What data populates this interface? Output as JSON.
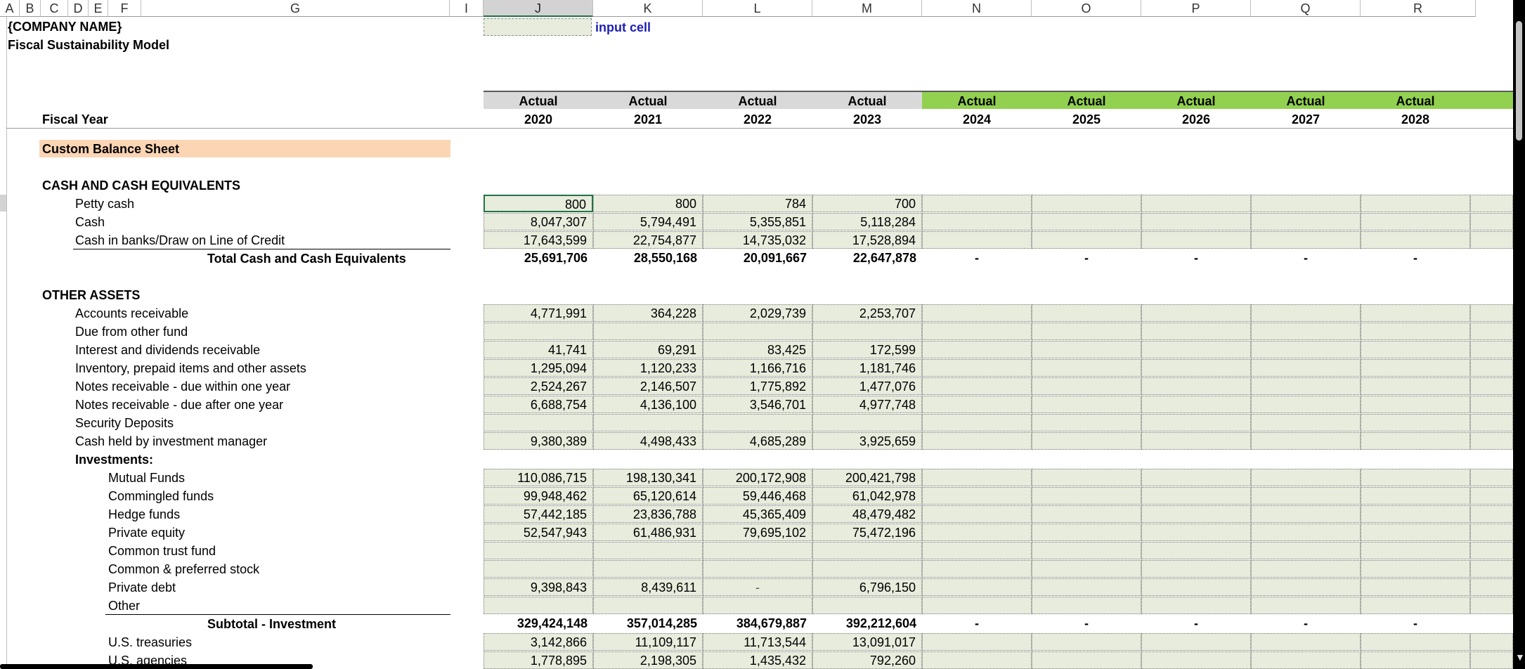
{
  "columns": {
    "letters": [
      "A",
      "B",
      "C",
      "D",
      "E",
      "F",
      "G",
      "I",
      "J",
      "K",
      "L",
      "M",
      "N",
      "O",
      "P",
      "Q",
      "R"
    ],
    "selected": "J"
  },
  "title": {
    "company": "{COMPANY NAME}",
    "model": "Fiscal Sustainability Model",
    "input_legend": "input cell"
  },
  "header": {
    "fiscal_year_label": "Fiscal Year",
    "period_types": [
      "Actual",
      "Actual",
      "Actual",
      "Actual",
      "Actual",
      "Actual",
      "Actual",
      "Actual",
      "Actual"
    ],
    "years": [
      "2020",
      "2021",
      "2022",
      "2023",
      "2024",
      "2025",
      "2026",
      "2027",
      "2028"
    ],
    "colors": {
      "gray": "#d9d9d9",
      "green": "#92d050"
    }
  },
  "section_title": "Custom Balance Sheet",
  "cash": {
    "heading": "CASH AND CASH EQUIVALENTS",
    "rows": [
      {
        "label": "Petty cash",
        "values": [
          "800",
          "800",
          "784",
          "700"
        ]
      },
      {
        "label": "Cash",
        "values": [
          "8,047,307",
          "5,794,491",
          "5,355,851",
          "5,118,284"
        ]
      },
      {
        "label": "Cash in banks/Draw on Line of Credit",
        "values": [
          "17,643,599",
          "22,754,877",
          "14,735,032",
          "17,528,894"
        ]
      }
    ],
    "total": {
      "label": "Total Cash and Cash Equivalents",
      "values": [
        "25,691,706",
        "28,550,168",
        "20,091,667",
        "22,647,878"
      ],
      "future": "-"
    }
  },
  "other_assets": {
    "heading": "OTHER ASSETS",
    "rows": [
      {
        "label": "Accounts receivable",
        "values": [
          "4,771,991",
          "364,228",
          "2,029,739",
          "2,253,707"
        ]
      },
      {
        "label": "Due from other fund",
        "values": [
          "",
          "",
          "",
          ""
        ]
      },
      {
        "label": "Interest and dividends receivable",
        "values": [
          "41,741",
          "69,291",
          "83,425",
          "172,599"
        ]
      },
      {
        "label": "Inventory, prepaid items and other assets",
        "values": [
          "1,295,094",
          "1,120,233",
          "1,166,716",
          "1,181,746"
        ]
      },
      {
        "label": "Notes receivable - due within one year",
        "values": [
          "2,524,267",
          "2,146,507",
          "1,775,892",
          "1,477,076"
        ]
      },
      {
        "label": "Notes receivable - due after one year",
        "values": [
          "6,688,754",
          "4,136,100",
          "3,546,701",
          "4,977,748"
        ]
      },
      {
        "label": "Security Deposits",
        "values": [
          "",
          "",
          "",
          ""
        ]
      },
      {
        "label": "Cash held by investment manager",
        "values": [
          "9,380,389",
          "4,498,433",
          "4,685,289",
          "3,925,659"
        ]
      }
    ]
  },
  "investments": {
    "heading": "Investments:",
    "rows": [
      {
        "label": "Mutual Funds",
        "values": [
          "110,086,715",
          "198,130,341",
          "200,172,908",
          "200,421,798"
        ]
      },
      {
        "label": "Commingled funds",
        "values": [
          "99,948,462",
          "65,120,614",
          "59,446,468",
          "61,042,978"
        ]
      },
      {
        "label": "Hedge funds",
        "values": [
          "57,442,185",
          "23,836,788",
          "45,365,409",
          "48,479,482"
        ]
      },
      {
        "label": "Private equity",
        "values": [
          "52,547,943",
          "61,486,931",
          "79,695,102",
          "75,472,196"
        ]
      },
      {
        "label": "Common trust fund",
        "values": [
          "",
          "",
          "",
          ""
        ]
      },
      {
        "label": "Common & preferred stock",
        "values": [
          "",
          "",
          "",
          ""
        ]
      },
      {
        "label": "Private debt",
        "values": [
          "9,398,843",
          "8,439,611",
          "-",
          "6,796,150"
        ]
      },
      {
        "label": "Other",
        "values": [
          "",
          "",
          "",
          ""
        ]
      }
    ],
    "subtotal": {
      "label": "Subtotal - Investment",
      "values": [
        "329,424,148",
        "357,014,285",
        "384,679,887",
        "392,212,604"
      ],
      "future": "-"
    },
    "after": [
      {
        "label": "U.S. treasuries",
        "values": [
          "3,142,866",
          "11,109,117",
          "11,713,544",
          "13,091,017"
        ]
      },
      {
        "label": "U.S. agencies",
        "values": [
          "1,778,895",
          "2,198,305",
          "1,435,432",
          "792,260"
        ]
      }
    ]
  }
}
